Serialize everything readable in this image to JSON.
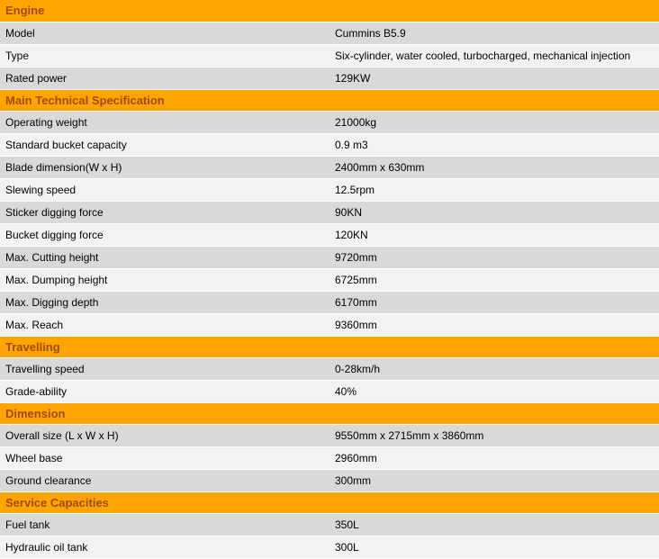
{
  "colors": {
    "header_bg": "#ffa500",
    "header_text": "#a04a00",
    "row_even_bg": "#d9d9d9",
    "row_odd_bg": "#f2f2f2",
    "cell_text": "#000000"
  },
  "sections": [
    {
      "title": "Engine",
      "rows": [
        {
          "label": "Model",
          "value": "Cummins B5.9"
        },
        {
          "label": "Type",
          "value": "Six-cylinder, water cooled, turbocharged, mechanical injection"
        },
        {
          "label": "Rated power",
          "value": "129KW"
        }
      ]
    },
    {
      "title": "Main Technical Specification",
      "rows": [
        {
          "label": "Operating weight",
          "value": "21000kg"
        },
        {
          "label": "Standard bucket capacity",
          "value": "0.9 m3"
        },
        {
          "label": "Blade dimension(W x H)",
          "value": "2400mm x 630mm"
        },
        {
          "label": "Slewing speed",
          "value": "12.5rpm"
        },
        {
          "label": "Sticker digging force",
          "value": "90KN"
        },
        {
          "label": "Bucket digging force",
          "value": "120KN"
        },
        {
          "label": "Max. Cutting height",
          "value": "9720mm"
        },
        {
          "label": "Max. Dumping height",
          "value": "6725mm"
        },
        {
          "label": "Max. Digging depth",
          "value": "6170mm"
        },
        {
          "label": "Max. Reach",
          "value": "9360mm"
        }
      ]
    },
    {
      "title": "Travelling",
      "rows": [
        {
          "label": "Travelling speed",
          "value": "0-28km/h"
        },
        {
          "label": "Grade-ability",
          "value": "40%"
        }
      ]
    },
    {
      "title": "Dimension",
      "rows": [
        {
          "label": "Overall size (L x W x H)",
          "value": "9550mm x 2715mm x 3860mm"
        },
        {
          "label": "Wheel base",
          "value": "2960mm"
        },
        {
          "label": "Ground clearance",
          "value": "300mm"
        }
      ]
    },
    {
      "title": "Service Capacities",
      "rows": [
        {
          "label": "Fuel tank",
          "value": "350L"
        },
        {
          "label": "Hydraulic oil tank",
          "value": "300L"
        }
      ]
    }
  ]
}
